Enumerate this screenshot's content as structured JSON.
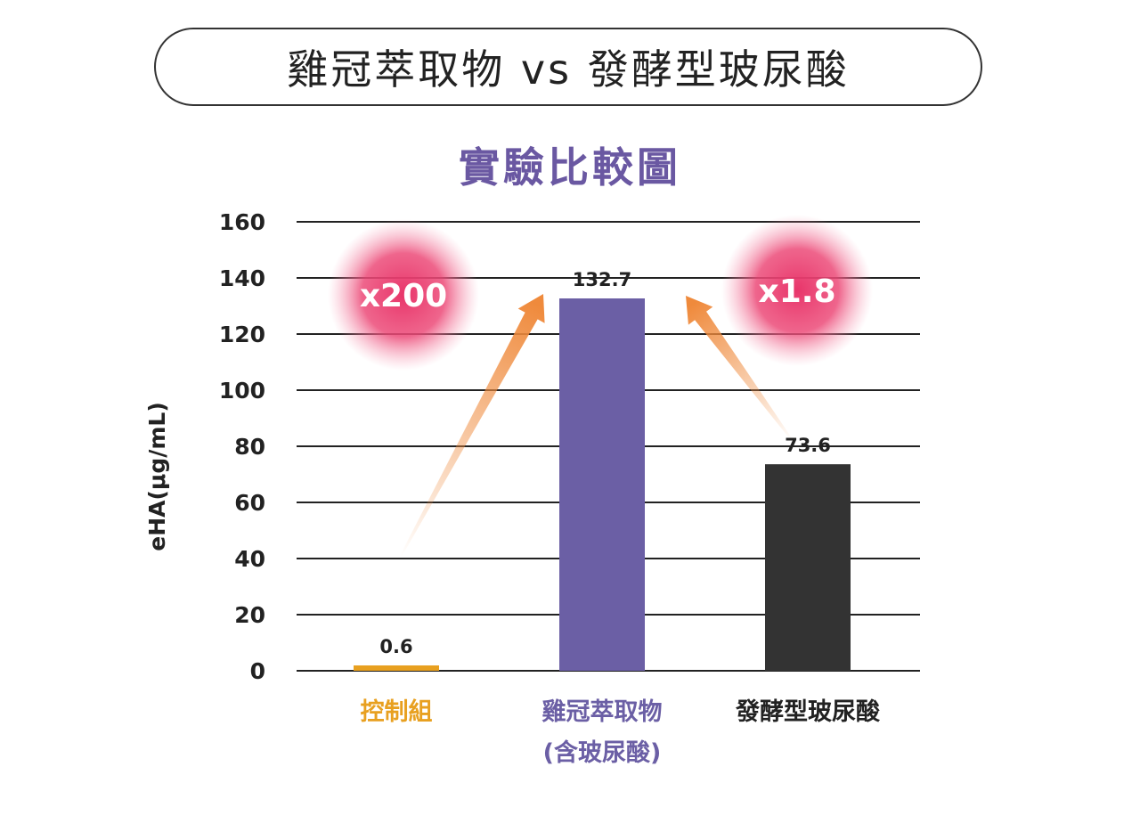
{
  "chart_data": {
    "type": "bar",
    "title": "雞冠萃取物 vs 發酵型玻尿酸",
    "subtitle": "實驗比較圖",
    "ylabel": "eHA(μg/mL)",
    "xlabel": "",
    "ylim": [
      0,
      160
    ],
    "yticks": [
      0,
      20,
      40,
      60,
      80,
      100,
      120,
      140,
      160
    ],
    "grid": true,
    "categories": [
      "控制組",
      "雞冠萃取物\n(含玻尿酸)",
      "發酵型玻尿酸"
    ],
    "values": [
      0.6,
      132.7,
      73.6
    ],
    "data_labels": [
      "0.6",
      "132.7",
      "73.6"
    ],
    "colors": [
      "#e8a020",
      "#6b5fa5",
      "#333333"
    ],
    "annotations": [
      {
        "text": "x200",
        "from": "控制組",
        "to": "雞冠萃取物\n(含玻尿酸)"
      },
      {
        "text": "x1.8",
        "from": "發酵型玻尿酸",
        "to": "雞冠萃取物\n(含玻尿酸)"
      }
    ],
    "annotation_color": "#e84a78",
    "arrow_color": "#ef8a3c"
  }
}
